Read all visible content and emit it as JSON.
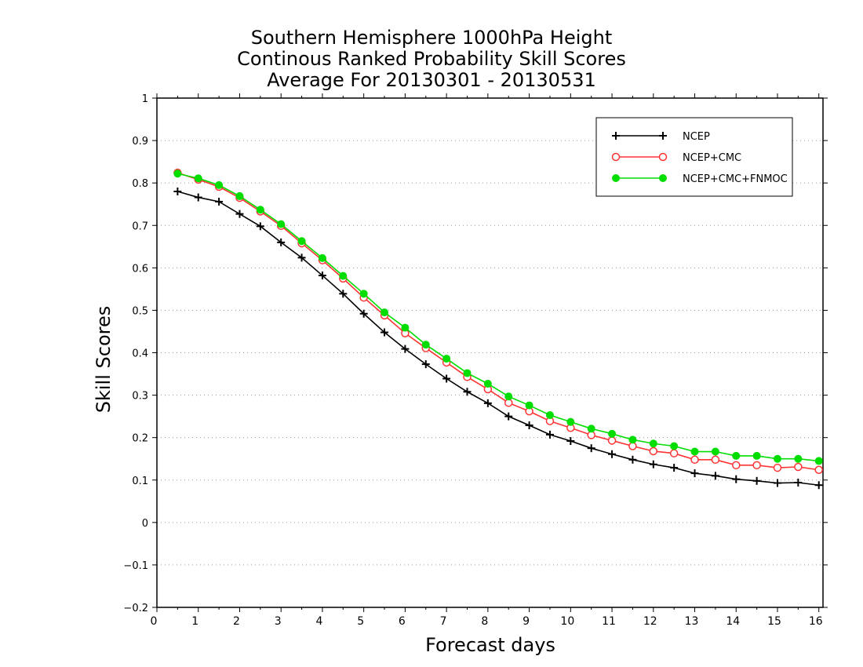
{
  "chart_data": {
    "type": "line",
    "title": "Southern Hemisphere 1000hPa Height",
    "subtitle": "Continous Ranked Probability Skill Scores",
    "subtitle2": "Average For 20130301 - 20130531",
    "xlabel": "Forecast days",
    "ylabel": "Skill Scores",
    "xlim": [
      0,
      16.1
    ],
    "ylim": [
      -0.2,
      1.0
    ],
    "xticks": [
      "0",
      "1",
      "2",
      "3",
      "4",
      "5",
      "6",
      "7",
      "8",
      "9",
      "10",
      "11",
      "12",
      "13",
      "14",
      "15",
      "16"
    ],
    "yticks": [
      "−0.2",
      "−0.1",
      "0",
      "0.1",
      "0.2",
      "0.3",
      "0.4",
      "0.5",
      "0.6",
      "0.7",
      "0.8",
      "0.9",
      "1"
    ],
    "grid": "horizontal-dotted",
    "legend_position": "top-right",
    "x": [
      0.5,
      1,
      1.5,
      2,
      2.5,
      3,
      3.5,
      4,
      4.5,
      5,
      5.5,
      6,
      6.5,
      7,
      7.5,
      8,
      8.5,
      9,
      9.5,
      10,
      10.5,
      11,
      11.5,
      12,
      12.5,
      13,
      13.5,
      14,
      14.5,
      15,
      15.5,
      16
    ],
    "series": [
      {
        "name": "NCEP",
        "color": "#000000",
        "marker": "plus",
        "values": [
          0.78,
          0.766,
          0.756,
          0.727,
          0.698,
          0.66,
          0.624,
          0.582,
          0.539,
          0.492,
          0.448,
          0.409,
          0.373,
          0.339,
          0.308,
          0.281,
          0.25,
          0.229,
          0.207,
          0.192,
          0.175,
          0.161,
          0.148,
          0.137,
          0.129,
          0.116,
          0.11,
          0.102,
          0.098,
          0.093,
          0.094,
          0.088
        ]
      },
      {
        "name": "NCEP+CMC",
        "color": "#ff3333",
        "marker": "open-circle",
        "values": [
          0.824,
          0.808,
          0.791,
          0.765,
          0.733,
          0.699,
          0.658,
          0.618,
          0.575,
          0.53,
          0.488,
          0.446,
          0.411,
          0.377,
          0.343,
          0.314,
          0.282,
          0.262,
          0.239,
          0.223,
          0.206,
          0.193,
          0.18,
          0.168,
          0.163,
          0.148,
          0.148,
          0.135,
          0.135,
          0.129,
          0.131,
          0.124
        ]
      },
      {
        "name": "NCEP+CMC+FNMOC",
        "color": "#00dd00",
        "marker": "filled-circle",
        "values": [
          0.822,
          0.811,
          0.795,
          0.769,
          0.737,
          0.703,
          0.663,
          0.623,
          0.581,
          0.539,
          0.495,
          0.459,
          0.419,
          0.386,
          0.352,
          0.327,
          0.297,
          0.276,
          0.253,
          0.237,
          0.221,
          0.209,
          0.195,
          0.186,
          0.18,
          0.167,
          0.167,
          0.157,
          0.157,
          0.15,
          0.15,
          0.145
        ]
      }
    ]
  }
}
